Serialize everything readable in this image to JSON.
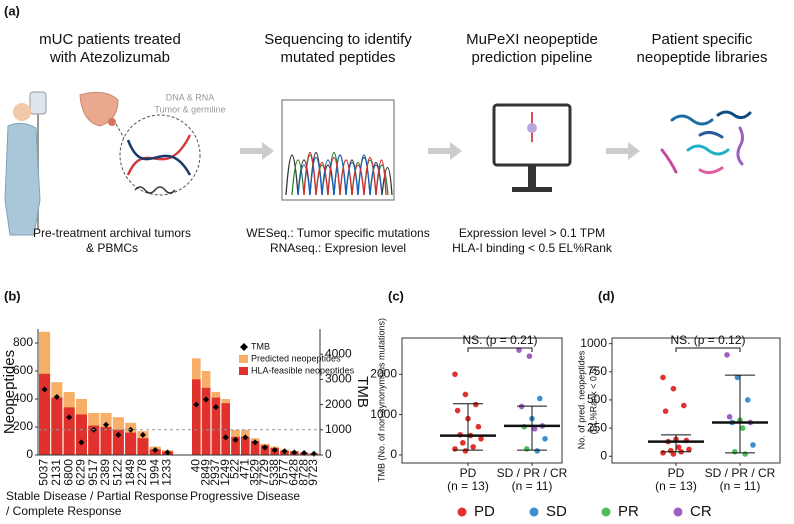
{
  "panel_a": {
    "label": "(a)",
    "steps": [
      {
        "title": [
          "mUC patients treated",
          "with Atezolizumab"
        ],
        "notes": [
          "Pre-treatment archival tumors",
          "& PBMCs"
        ]
      },
      {
        "title": [
          "Sequencing to identify",
          "mutated peptides"
        ],
        "notes": [
          "WESeq.: Tumor specific mutations",
          "RNAseq.: Expresion level"
        ]
      },
      {
        "title": [
          "MuPeXI neopeptide",
          "prediction pipeline"
        ],
        "notes": [
          "Expression level > 0.1 TPM",
          "HLA-I binding < 0.5 EL%Rank"
        ]
      },
      {
        "title": [
          "Patient specific",
          "neopeptide libraries"
        ],
        "notes": []
      }
    ],
    "sample_note": [
      "DNA & RNA",
      "Tumor & germline"
    ]
  },
  "chart_data": [
    {
      "type": "bar",
      "panel_label": "(b)",
      "ylabel": "Neopeptides",
      "y2label": "TMB",
      "ylim": [
        0,
        900
      ],
      "yticks": [
        0,
        200,
        400,
        600,
        800
      ],
      "y2lim": [
        0,
        5000
      ],
      "y2ticks": [
        0,
        1000,
        2000,
        3000,
        4000
      ],
      "reference_line": {
        "axis": "y2",
        "value": 1000,
        "style": "dashed"
      },
      "groups": [
        {
          "label": [
            "Stable Disease / Partial Response",
            "/ Complete Response"
          ],
          "categories": [
            "5037",
            "2131",
            "6800",
            "6229",
            "9517",
            "2389",
            "5122",
            "1849",
            "2278",
            "1994",
            "1233"
          ]
        },
        {
          "label": [
            "Progressive Disease"
          ],
          "categories": [
            "40",
            "2849",
            "2937",
            "1249",
            "522",
            "471",
            "3529",
            "7729",
            "5338",
            "7577",
            "6428",
            "8728",
            "9723"
          ]
        }
      ],
      "series": [
        {
          "name": "TMB",
          "color": "#000000",
          "axis": "y2",
          "marker": "diamond",
          "values": [
            [
              2600,
              2300,
              1500,
              500,
              1000,
              1200,
              800,
              1000,
              800,
              200,
              100
            ],
            [
              2000,
              2200,
              1900,
              700,
              600,
              700,
              500,
              300,
              200,
              150,
              100,
              80,
              50
            ]
          ]
        },
        {
          "name": "Predicted neopeptides",
          "color": "#f7ae67",
          "values": [
            [
              880,
              520,
              450,
              400,
              300,
              300,
              270,
              230,
              170,
              60,
              35
            ],
            [
              690,
              600,
              450,
              400,
              180,
              180,
              120,
              80,
              60,
              40,
              30,
              20,
              15
            ]
          ]
        },
        {
          "name": "HLA-feasible neopeptides",
          "color": "#e0312c",
          "values": [
            [
              580,
              410,
              340,
              290,
              210,
              200,
              180,
              160,
              120,
              40,
              25
            ],
            [
              540,
              480,
              410,
              370,
              130,
              130,
              100,
              70,
              50,
              30,
              25,
              15,
              10
            ]
          ]
        }
      ]
    },
    {
      "type": "scatter",
      "panel_label": "(c)",
      "ylabel": "TMB (No. of non-synonymous mutations)",
      "ylim": [
        -200,
        2900
      ],
      "yticks": [
        0,
        1000,
        2000
      ],
      "annotation": "NS. (p = 0.21)",
      "groups": [
        {
          "label": "PD",
          "n": "(n = 13)",
          "values": [
            2000,
            1500,
            1250,
            1100,
            900,
            700,
            500,
            480,
            400,
            300,
            200,
            150,
            100
          ],
          "classes": [
            "PD",
            "PD",
            "PD",
            "PD",
            "PD",
            "PD",
            "PD",
            "PD",
            "PD",
            "PD",
            "PD",
            "PD",
            "PD"
          ],
          "median": 480,
          "lower": 120,
          "upper": 1270
        },
        {
          "label": "SD / PR / CR",
          "n": "(n = 11)",
          "values": [
            2600,
            2450,
            1400,
            1200,
            900,
            720,
            700,
            650,
            400,
            150,
            100
          ],
          "classes": [
            "CR",
            "CR",
            "SD",
            "CR",
            "SD",
            "CR",
            "PR",
            "CR",
            "SD",
            "PR",
            "SD"
          ],
          "median": 720,
          "lower": 120,
          "upper": 1210
        }
      ]
    },
    {
      "type": "scatter",
      "panel_label": "(d)",
      "ylabel": [
        "No. of pred. neopeptides",
        "(EL%Rank < 0.5)"
      ],
      "ylim": [
        -60,
        1050
      ],
      "yticks": [
        0,
        250,
        500,
        750,
        1000
      ],
      "annotation": "NS. (p = 0.12)",
      "groups": [
        {
          "label": "PD",
          "n": "(n = 13)",
          "values": [
            700,
            600,
            450,
            400,
            150,
            140,
            130,
            80,
            60,
            50,
            40,
            30,
            20
          ],
          "classes": [
            "PD",
            "PD",
            "PD",
            "PD",
            "PD",
            "PD",
            "PD",
            "PD",
            "PD",
            "PD",
            "PD",
            "PD",
            "PD"
          ],
          "median": 130,
          "lower": 40,
          "upper": 190
        },
        {
          "label": "SD / PR / CR",
          "n": "(n = 11)",
          "values": [
            900,
            700,
            500,
            350,
            320,
            300,
            300,
            250,
            100,
            40,
            20
          ],
          "classes": [
            "CR",
            "SD",
            "SD",
            "CR",
            "PR",
            "CR",
            "SD",
            "PR",
            "SD",
            "PR",
            "PR"
          ],
          "median": 300,
          "lower": 30,
          "upper": 720
        }
      ]
    }
  ],
  "legend": [
    {
      "name": "PD",
      "color": "#e0312c"
    },
    {
      "name": "SD",
      "color": "#3d8fd1"
    },
    {
      "name": "PR",
      "color": "#4cbf5a"
    },
    {
      "name": "CR",
      "color": "#a05ec4"
    }
  ]
}
